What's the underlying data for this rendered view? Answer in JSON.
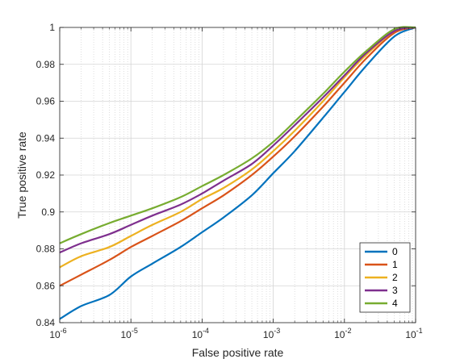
{
  "chart_data": {
    "type": "line",
    "xlabel": "False positive rate",
    "ylabel": "True positive rate",
    "xscale": "log",
    "xlim": [
      1e-06,
      0.1
    ],
    "ylim": [
      0.84,
      1.0
    ],
    "grid": true,
    "minor_grid": true,
    "legend_position": "bottom-right",
    "x_tick_labels": [
      {
        "base": "10",
        "exp": "-6"
      },
      {
        "base": "10",
        "exp": "-5"
      },
      {
        "base": "10",
        "exp": "-4"
      },
      {
        "base": "10",
        "exp": "-3"
      },
      {
        "base": "10",
        "exp": "-2"
      },
      {
        "base": "10",
        "exp": "-1"
      }
    ],
    "x_ticks": [
      1e-06,
      1e-05,
      0.0001,
      0.001,
      0.01,
      0.1
    ],
    "y_tick_labels": [
      "0.84",
      "0.86",
      "0.88",
      "0.9",
      "0.92",
      "0.94",
      "0.96",
      "0.98",
      "1"
    ],
    "y_ticks": [
      0.84,
      0.86,
      0.88,
      0.9,
      0.92,
      0.94,
      0.96,
      0.98,
      1.0
    ],
    "series": [
      {
        "name": "0",
        "color": "#0072BD",
        "x": [
          1e-06,
          2e-06,
          5e-06,
          1e-05,
          2e-05,
          5e-05,
          0.0001,
          0.0002,
          0.0005,
          0.001,
          0.002,
          0.005,
          0.01,
          0.02,
          0.05,
          0.1
        ],
        "y": [
          0.842,
          0.849,
          0.855,
          0.865,
          0.872,
          0.881,
          0.889,
          0.897,
          0.909,
          0.921,
          0.933,
          0.951,
          0.965,
          0.979,
          0.995,
          1.0
        ]
      },
      {
        "name": "1",
        "color": "#D95319",
        "x": [
          1e-06,
          2e-06,
          5e-06,
          1e-05,
          2e-05,
          5e-05,
          0.0001,
          0.0002,
          0.0005,
          0.001,
          0.002,
          0.005,
          0.01,
          0.02,
          0.05,
          0.1
        ],
        "y": [
          0.86,
          0.866,
          0.874,
          0.881,
          0.887,
          0.895,
          0.902,
          0.909,
          0.92,
          0.93,
          0.941,
          0.957,
          0.97,
          0.983,
          0.997,
          1.0
        ]
      },
      {
        "name": "2",
        "color": "#EDB120",
        "x": [
          1e-06,
          2e-06,
          5e-06,
          1e-05,
          2e-05,
          5e-05,
          0.0001,
          0.0002,
          0.0005,
          0.001,
          0.002,
          0.005,
          0.01,
          0.02,
          0.05,
          0.1
        ],
        "y": [
          0.87,
          0.876,
          0.881,
          0.887,
          0.893,
          0.9,
          0.907,
          0.913,
          0.923,
          0.933,
          0.944,
          0.96,
          0.973,
          0.985,
          0.998,
          1.0
        ]
      },
      {
        "name": "3",
        "color": "#7E2F8E",
        "x": [
          1e-06,
          2e-06,
          5e-06,
          1e-05,
          2e-05,
          5e-05,
          0.0001,
          0.0002,
          0.0005,
          0.001,
          0.002,
          0.005,
          0.01,
          0.02,
          0.05,
          0.1
        ],
        "y": [
          0.878,
          0.883,
          0.888,
          0.893,
          0.898,
          0.904,
          0.91,
          0.917,
          0.926,
          0.936,
          0.947,
          0.962,
          0.974,
          0.986,
          0.998,
          1.0
        ]
      },
      {
        "name": "4",
        "color": "#77AC30",
        "x": [
          1e-06,
          2e-06,
          5e-06,
          1e-05,
          2e-05,
          5e-05,
          0.0001,
          0.0002,
          0.0005,
          0.001,
          0.002,
          0.005,
          0.01,
          0.02,
          0.05,
          0.1
        ],
        "y": [
          0.883,
          0.888,
          0.894,
          0.898,
          0.902,
          0.908,
          0.914,
          0.92,
          0.929,
          0.938,
          0.949,
          0.964,
          0.976,
          0.987,
          0.999,
          1.0
        ]
      }
    ]
  }
}
